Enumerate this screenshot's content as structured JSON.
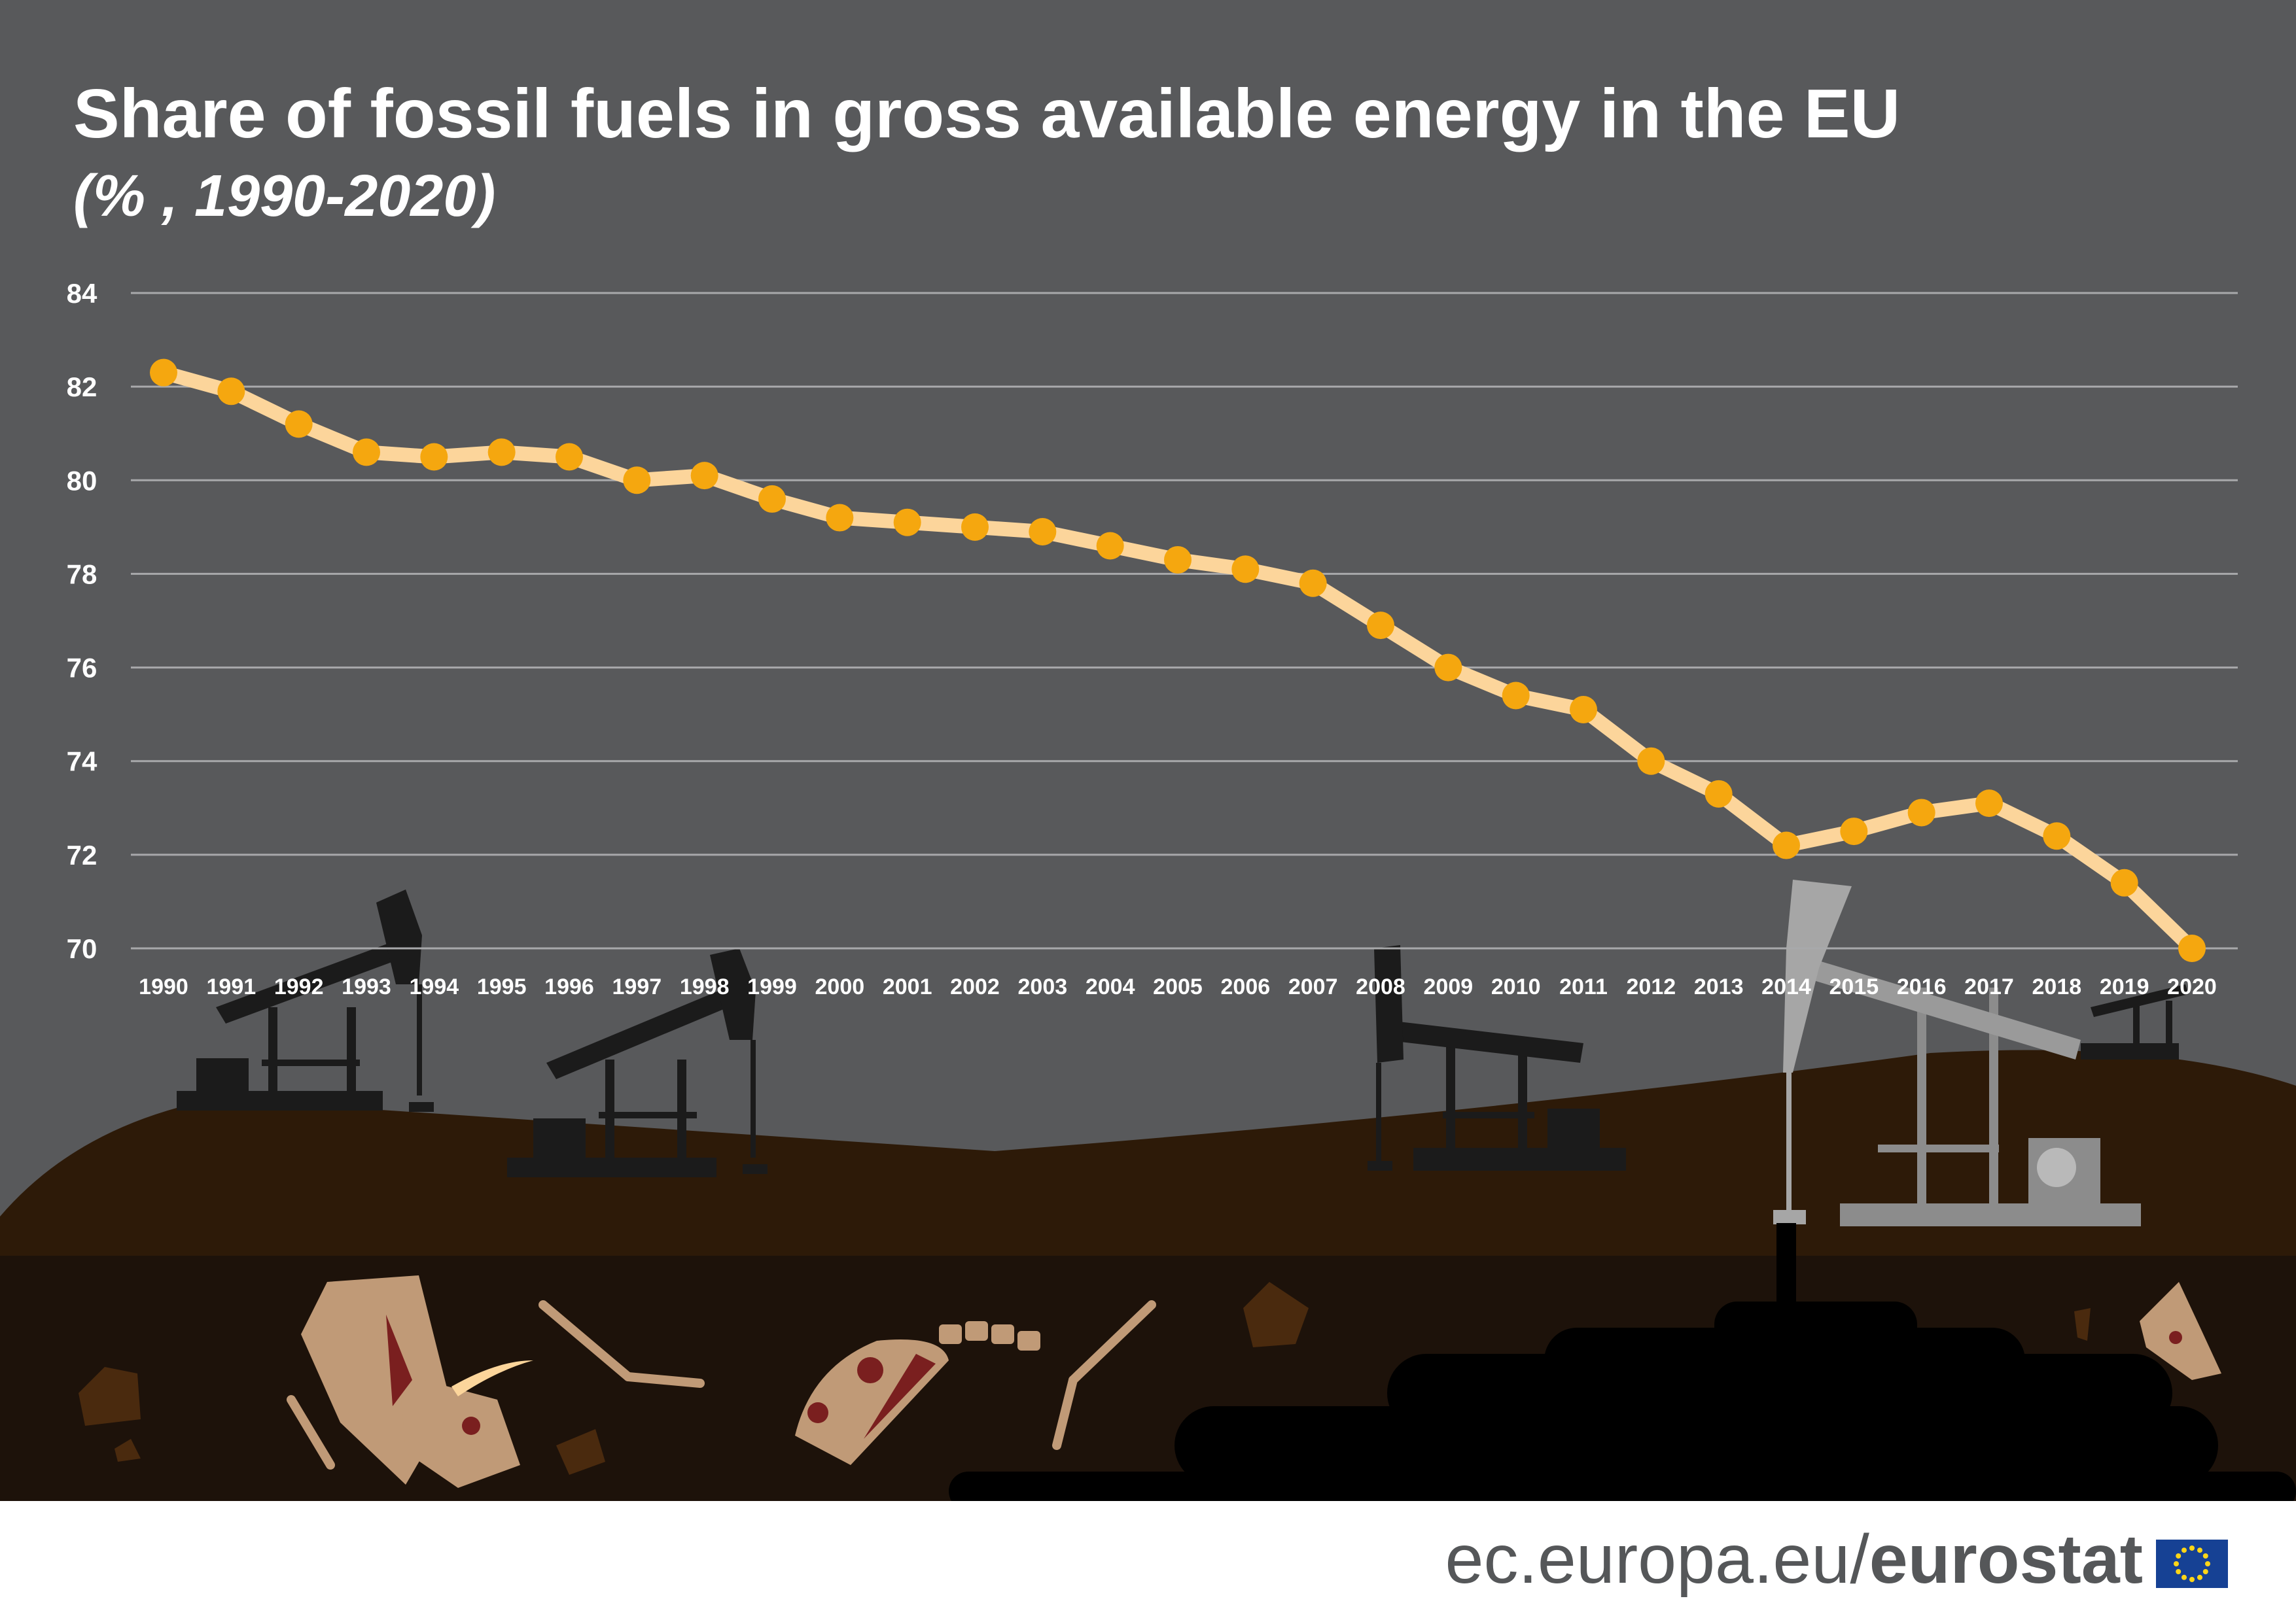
{
  "header": {
    "title": "Share of fossil fuels in gross available energy in the EU",
    "subtitle": "(% , 1990-2020)"
  },
  "footer": {
    "url_prefix": "ec.europa.eu/",
    "brand": "eurostat",
    "flag_icon": "eu-flag-icon"
  },
  "colors": {
    "background": "#58595b",
    "line": "#fcd59b",
    "marker": "#f5a70f",
    "gridline": "#a8a9ab",
    "ground": "#2d1a08",
    "underground": "#1d120a",
    "bone": "#c09a77",
    "eu_blue": "#164194",
    "eu_yellow": "#ffd617"
  },
  "chart_data": {
    "type": "line",
    "title": "Share of fossil fuels in gross available energy in the EU",
    "subtitle": "(% , 1990-2020)",
    "xlabel": "",
    "ylabel": "",
    "ylim": [
      70,
      84
    ],
    "yticks": [
      "70",
      "72",
      "74",
      "76",
      "78",
      "80",
      "82",
      "84"
    ],
    "grid": true,
    "legend": "none",
    "x": [
      "1990",
      "1991",
      "1992",
      "1993",
      "1994",
      "1995",
      "1996",
      "1997",
      "1998",
      "1999",
      "2000",
      "2001",
      "2002",
      "2003",
      "2004",
      "2005",
      "2006",
      "2007",
      "2008",
      "2009",
      "2010",
      "2011",
      "2012",
      "2013",
      "2014",
      "2015",
      "2016",
      "2017",
      "2018",
      "2019",
      "2020"
    ],
    "series": [
      {
        "values": [
          82.3,
          81.9,
          81.2,
          80.6,
          80.5,
          80.6,
          80.5,
          80.0,
          80.1,
          79.6,
          79.2,
          79.1,
          79.0,
          78.9,
          78.6,
          78.3,
          78.1,
          77.8,
          76.9,
          76.0,
          75.4,
          75.1,
          74.0,
          73.3,
          72.2,
          72.5,
          72.9,
          73.1,
          72.4,
          71.4,
          70.0
        ]
      }
    ]
  }
}
